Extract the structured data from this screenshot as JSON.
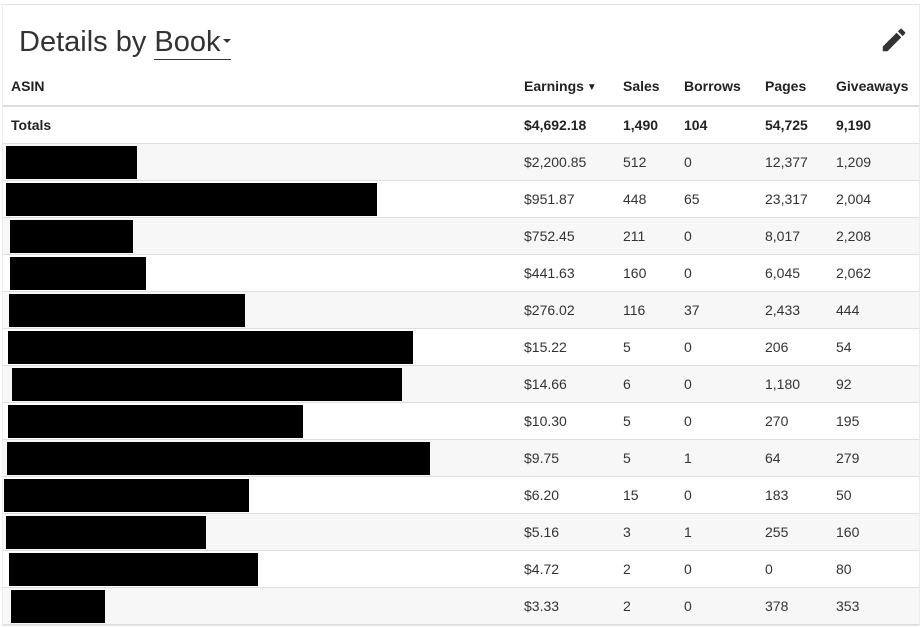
{
  "header": {
    "title_prefix": "Details by ",
    "title_dropdown": "Book",
    "edit_icon": "pencil-icon"
  },
  "table": {
    "columns": [
      "ASIN",
      "Earnings",
      "Sales",
      "Borrows",
      "Pages",
      "Giveaways"
    ],
    "sorted_column": "Earnings",
    "sort_direction": "descending",
    "totals": {
      "label": "Totals",
      "earnings": "$4,692.18",
      "sales": "1,490",
      "borrows": "104",
      "pages": "54,725",
      "giveaways": "9,190"
    },
    "rows": [
      {
        "asin_redacted": true,
        "earnings": "$2,200.85",
        "sales": "512",
        "borrows": "0",
        "pages": "12,377",
        "giveaways": "1,209"
      },
      {
        "asin_redacted": true,
        "earnings": "$951.87",
        "sales": "448",
        "borrows": "65",
        "pages": "23,317",
        "giveaways": "2,004"
      },
      {
        "asin_redacted": true,
        "earnings": "$752.45",
        "sales": "211",
        "borrows": "0",
        "pages": "8,017",
        "giveaways": "2,208"
      },
      {
        "asin_redacted": true,
        "earnings": "$441.63",
        "sales": "160",
        "borrows": "0",
        "pages": "6,045",
        "giveaways": "2,062"
      },
      {
        "asin_redacted": true,
        "earnings": "$276.02",
        "sales": "116",
        "borrows": "37",
        "pages": "2,433",
        "giveaways": "444"
      },
      {
        "asin_redacted": true,
        "earnings": "$15.22",
        "sales": "5",
        "borrows": "0",
        "pages": "206",
        "giveaways": "54"
      },
      {
        "asin_redacted": true,
        "earnings": "$14.66",
        "sales": "6",
        "borrows": "0",
        "pages": "1,180",
        "giveaways": "92"
      },
      {
        "asin_redacted": true,
        "earnings": "$10.30",
        "sales": "5",
        "borrows": "0",
        "pages": "270",
        "giveaways": "195"
      },
      {
        "asin_redacted": true,
        "earnings": "$9.75",
        "sales": "5",
        "borrows": "1",
        "pages": "64",
        "giveaways": "279"
      },
      {
        "asin_redacted": true,
        "earnings": "$6.20",
        "sales": "15",
        "borrows": "0",
        "pages": "183",
        "giveaways": "50"
      },
      {
        "asin_redacted": true,
        "earnings": "$5.16",
        "sales": "3",
        "borrows": "1",
        "pages": "255",
        "giveaways": "160"
      },
      {
        "asin_redacted": true,
        "earnings": "$4.72",
        "sales": "2",
        "borrows": "0",
        "pages": "0",
        "giveaways": "80"
      },
      {
        "asin_redacted": true,
        "earnings": "$3.33",
        "sales": "2",
        "borrows": "0",
        "pages": "378",
        "giveaways": "353"
      }
    ]
  }
}
